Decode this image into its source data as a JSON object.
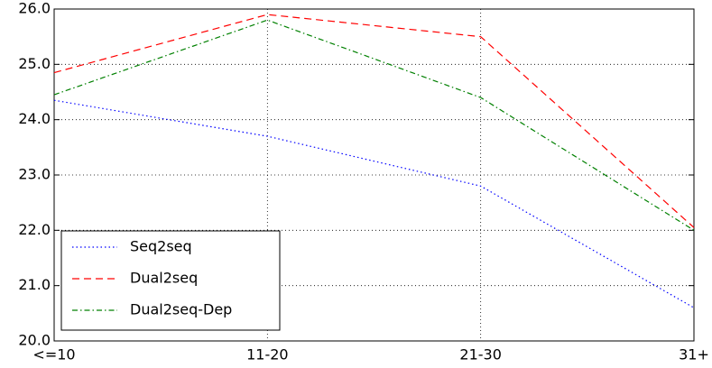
{
  "chart_data": {
    "type": "line",
    "categories": [
      "<=10",
      "11-20",
      "21-30",
      "31+"
    ],
    "series": [
      {
        "name": "Seq2seq",
        "color": "#0000ff",
        "linestyle": "dotted",
        "values": [
          24.35,
          23.7,
          22.8,
          20.6
        ]
      },
      {
        "name": "Dual2seq",
        "color": "#ff0000",
        "linestyle": "dashed",
        "values": [
          24.85,
          25.9,
          25.5,
          22.05
        ]
      },
      {
        "name": "Dual2seq-Dep",
        "color": "#008000",
        "linestyle": "dashdot",
        "values": [
          24.45,
          25.8,
          24.4,
          22.0
        ]
      }
    ],
    "ylim": [
      20,
      26
    ],
    "yticks": [
      {
        "value": 20,
        "label": "20.0"
      },
      {
        "value": 21,
        "label": "21.0"
      },
      {
        "value": 22,
        "label": "22.0"
      },
      {
        "value": 23,
        "label": "23.0"
      },
      {
        "value": 24,
        "label": "24.0"
      },
      {
        "value": 25,
        "label": "25.0"
      },
      {
        "value": 26,
        "label": "26.0"
      }
    ],
    "grid": true,
    "legend": "lower left"
  }
}
